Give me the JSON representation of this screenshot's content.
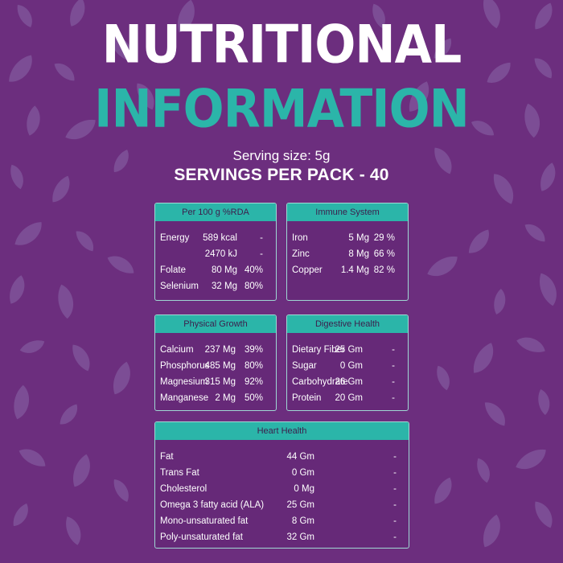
{
  "header": {
    "title_line1": "NUTRITIONAL",
    "title_line2": "INFORMATION",
    "serving_size": "Serving size: 5g",
    "servings_per_pack": "SERVINGS PER PACK - 40"
  },
  "colors": {
    "background": "#6c2e7e",
    "accent": "#2bb5a9",
    "leaf": "#8b68a8"
  },
  "panels": {
    "per100": {
      "title": "Per 100 g  %RDA",
      "rows": [
        {
          "name": "Energy",
          "value": "589 kcal",
          "rda": "-"
        },
        {
          "name": "",
          "value": "2470 kJ",
          "rda": "-"
        },
        {
          "name": "Folate",
          "value": "80 Mg",
          "rda": "40%"
        },
        {
          "name": "Selenium",
          "value": "32 Mg",
          "rda": "80%"
        }
      ]
    },
    "immune": {
      "title": "Immune System",
      "rows": [
        {
          "name": "Iron",
          "value": "5 Mg",
          "rda": "29 %"
        },
        {
          "name": "Zinc",
          "value": "8 Mg",
          "rda": "66 %"
        },
        {
          "name": "Copper",
          "value": "1.4 Mg",
          "rda": "82 %"
        }
      ]
    },
    "physical": {
      "title": "Physical Growth",
      "rows": [
        {
          "name": "Calcium",
          "value": "237 Mg",
          "rda": "39%"
        },
        {
          "name": "Phosphorus",
          "value": "485 Mg",
          "rda": "80%"
        },
        {
          "name": "Magnesium",
          "value": "315 Mg",
          "rda": "92%"
        },
        {
          "name": "Manganese",
          "value": "2 Mg",
          "rda": "50%"
        }
      ]
    },
    "digestive": {
      "title": "Digestive Health",
      "rows": [
        {
          "name": "Dietary Fiber",
          "value": "25 Gm",
          "rda": "-"
        },
        {
          "name": "Sugar",
          "value": "0 Gm",
          "rda": "-"
        },
        {
          "name": "Carbohydrate",
          "value": "26 Gm",
          "rda": "-"
        },
        {
          "name": "Protein",
          "value": "20 Gm",
          "rda": "-"
        }
      ]
    },
    "heart": {
      "title": "Heart Health",
      "rows": [
        {
          "name": "Fat",
          "value": "44 Gm",
          "rda": "-"
        },
        {
          "name": "Trans Fat",
          "value": "0 Gm",
          "rda": "-"
        },
        {
          "name": "Cholesterol",
          "value": "0 Mg",
          "rda": "-"
        },
        {
          "name": "Omega 3 fatty acid (ALA)",
          "value": "25 Gm",
          "rda": "-"
        },
        {
          "name": "Mono-unsaturated fat",
          "value": "8 Gm",
          "rda": "-"
        },
        {
          "name": "Poly-unsaturated fat",
          "value": "32 Gm",
          "rda": "-"
        }
      ]
    }
  }
}
